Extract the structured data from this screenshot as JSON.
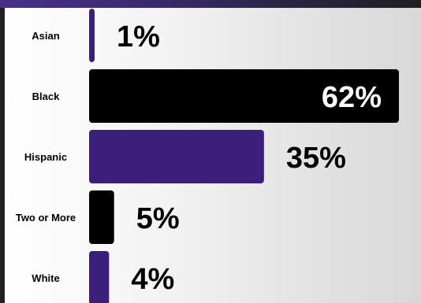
{
  "chart_data": {
    "type": "bar",
    "orientation": "horizontal",
    "categories": [
      "Asian",
      "Black",
      "Hispanic",
      "Two or More",
      "White"
    ],
    "values": [
      1,
      62,
      35,
      5,
      4
    ],
    "value_labels": [
      "1%",
      "62%",
      "35%",
      "5%",
      "4%"
    ],
    "unit": "%",
    "xlim": [
      0,
      65
    ],
    "grid": false,
    "legend": "none",
    "colors": [
      "#3b1f7a",
      "#000000",
      "#3b1f7a",
      "#000000",
      "#3b1f7a"
    ],
    "label_colors": [
      "#000000",
      "#ffffff",
      "#000000",
      "#000000",
      "#000000"
    ]
  }
}
